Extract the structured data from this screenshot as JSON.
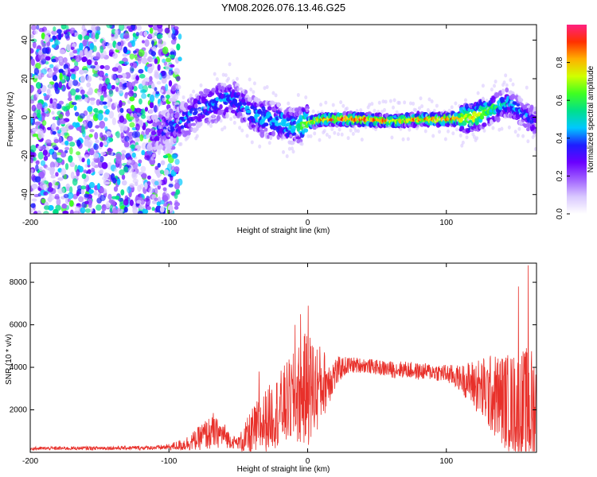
{
  "title": "YM08.2026.076.13.46.G25",
  "colors": {
    "frame": "#000000",
    "snr_line": "#e8302a",
    "colormap": [
      "#ffffff",
      "#d9c8ff",
      "#a060ff",
      "#6a00ff",
      "#1e1eff",
      "#00c8ff",
      "#00e08a",
      "#40ff20",
      "#d0ff00",
      "#ffb000",
      "#ff3000",
      "#ff2080"
    ]
  },
  "chart_data": [
    {
      "type": "heatmap",
      "title": "YM08.2026.076.13.46.G25",
      "xlabel": "Height of straight line (km)",
      "ylabel": "Frequency (Hz)",
      "xlim": [
        -200,
        165
      ],
      "ylim": [
        -50,
        48
      ],
      "xticks": [
        -200,
        -100,
        0,
        100
      ],
      "xtick_labels": [
        "-200",
        "-100",
        "0",
        "100"
      ],
      "yticks": [
        -40,
        -20,
        0,
        20,
        40
      ],
      "ytick_labels": [
        "-40",
        "-20",
        "0",
        "20",
        "40"
      ],
      "ridge": {
        "x": [
          -110,
          -100,
          -90,
          -80,
          -70,
          -60,
          -55,
          -50,
          -40,
          -30,
          -20,
          -10,
          0,
          10,
          20,
          40,
          60,
          80,
          100,
          120,
          135,
          145,
          155,
          165
        ],
        "freq": [
          -8,
          -5,
          -2,
          3,
          6,
          9,
          11,
          7,
          2,
          -1,
          -2,
          -5,
          -3,
          -1,
          -1,
          -1,
          -2,
          -1,
          -1,
          0,
          5,
          8,
          2,
          -3
        ],
        "amplitude": [
          0.3,
          0.35,
          0.4,
          0.4,
          0.45,
          0.45,
          0.4,
          0.4,
          0.45,
          0.45,
          0.5,
          0.5,
          0.75,
          0.9,
          0.95,
          0.95,
          0.85,
          0.85,
          0.9,
          0.8,
          0.6,
          0.45,
          0.4,
          0.35
        ]
      },
      "noise_region_x": [
        -200,
        -100
      ],
      "colorbar": {
        "label": "Normalized spectral amplitude",
        "range": [
          0,
          1
        ],
        "ticks": [
          0.0,
          0.2,
          0.4,
          0.6,
          0.8
        ],
        "tick_labels": [
          "0.0",
          "0.2",
          "0.4",
          "0.6",
          "0.8"
        ]
      }
    },
    {
      "type": "line",
      "xlabel": "Height of straight line (km)",
      "ylabel": "SNR (10 * v/v)",
      "xlim": [
        -200,
        165
      ],
      "ylim": [
        0,
        8900
      ],
      "xticks": [
        -200,
        -100,
        0,
        100
      ],
      "xtick_labels": [
        "-200",
        "-100",
        "0",
        "100"
      ],
      "yticks": [
        2000,
        4000,
        6000,
        8000
      ],
      "ytick_labels": [
        "2000",
        "4000",
        "6000",
        "8000"
      ],
      "envelope": {
        "x": [
          -200,
          -150,
          -110,
          -100,
          -90,
          -80,
          -75,
          -70,
          -65,
          -60,
          -55,
          -50,
          -45,
          -40,
          -35,
          -30,
          -25,
          -20,
          -15,
          -10,
          -5,
          0,
          5,
          10,
          15,
          20,
          25,
          30,
          40,
          50,
          60,
          70,
          80,
          90,
          100,
          110,
          120,
          125,
          130,
          140,
          150,
          155,
          160,
          165
        ],
        "baseline": [
          180,
          200,
          220,
          250,
          350,
          600,
          800,
          900,
          900,
          800,
          500,
          450,
          600,
          900,
          1200,
          1500,
          1800,
          2000,
          2300,
          2500,
          2800,
          3000,
          3000,
          3200,
          3400,
          3700,
          4000,
          4100,
          4100,
          4000,
          3900,
          3900,
          3800,
          3800,
          3700,
          3500,
          3200,
          3000,
          2800,
          2500,
          2200,
          2100,
          2000,
          2000
        ],
        "spread": [
          80,
          90,
          100,
          150,
          300,
          500,
          700,
          800,
          700,
          600,
          300,
          300,
          800,
          1200,
          1400,
          1500,
          1600,
          1800,
          2000,
          2200,
          2500,
          2800,
          2400,
          1800,
          1200,
          800,
          500,
          400,
          350,
          350,
          400,
          400,
          400,
          400,
          450,
          600,
          1200,
          1500,
          1800,
          2200,
          2500,
          2800,
          3000,
          3000
        ],
        "peak_points": [
          [
            0.5,
            6900
          ],
          [
            159,
            8800
          ],
          [
            152,
            7800
          ],
          [
            -5,
            6500
          ],
          [
            -9,
            6000
          ],
          [
            -35,
            3800
          ],
          [
            -68,
            1850
          ]
        ]
      }
    }
  ]
}
